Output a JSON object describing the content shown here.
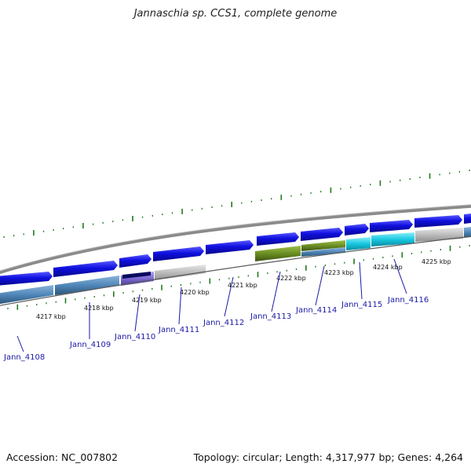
{
  "title": "Jannaschia sp. CCS1, complete genome",
  "footer": {
    "accession": "Accession: NC_007802",
    "stats": "Topology: circular; Length: 4,317,977 bp; Genes: 4,264"
  },
  "kbp_ticks": [
    {
      "label": "4217 kbp",
      "kbp": 4217
    },
    {
      "label": "4218 kbp",
      "kbp": 4218
    },
    {
      "label": "4219 kbp",
      "kbp": 4219
    },
    {
      "label": "4220 kbp",
      "kbp": 4220
    },
    {
      "label": "4221 kbp",
      "kbp": 4221
    },
    {
      "label": "4222 kbp",
      "kbp": 4222
    },
    {
      "label": "4223 kbp",
      "kbp": 4223
    },
    {
      "label": "4224 kbp",
      "kbp": 4224
    },
    {
      "label": "4225 kbp",
      "kbp": 4225
    }
  ],
  "gene_labels": [
    {
      "name": "Jann_4108"
    },
    {
      "name": "Jann_4109"
    },
    {
      "name": "Jann_4110"
    },
    {
      "name": "Jann_4111"
    },
    {
      "name": "Jann_4112"
    },
    {
      "name": "Jann_4113"
    },
    {
      "name": "Jann_4114"
    },
    {
      "name": "Jann_4115"
    },
    {
      "name": "Jann_4116"
    }
  ],
  "colors": {
    "cds": "#1010e0",
    "backbone": "#8a8a8a",
    "tick": "#1f7a1f",
    "label": "#1a1aa6",
    "steelblue": "#4f86b8",
    "slateblue": "#7b68d0",
    "navy": "#0a0a60",
    "olive": "#6b8e23",
    "cyan": "#18c8e0",
    "grey": "#bdbdbd"
  }
}
